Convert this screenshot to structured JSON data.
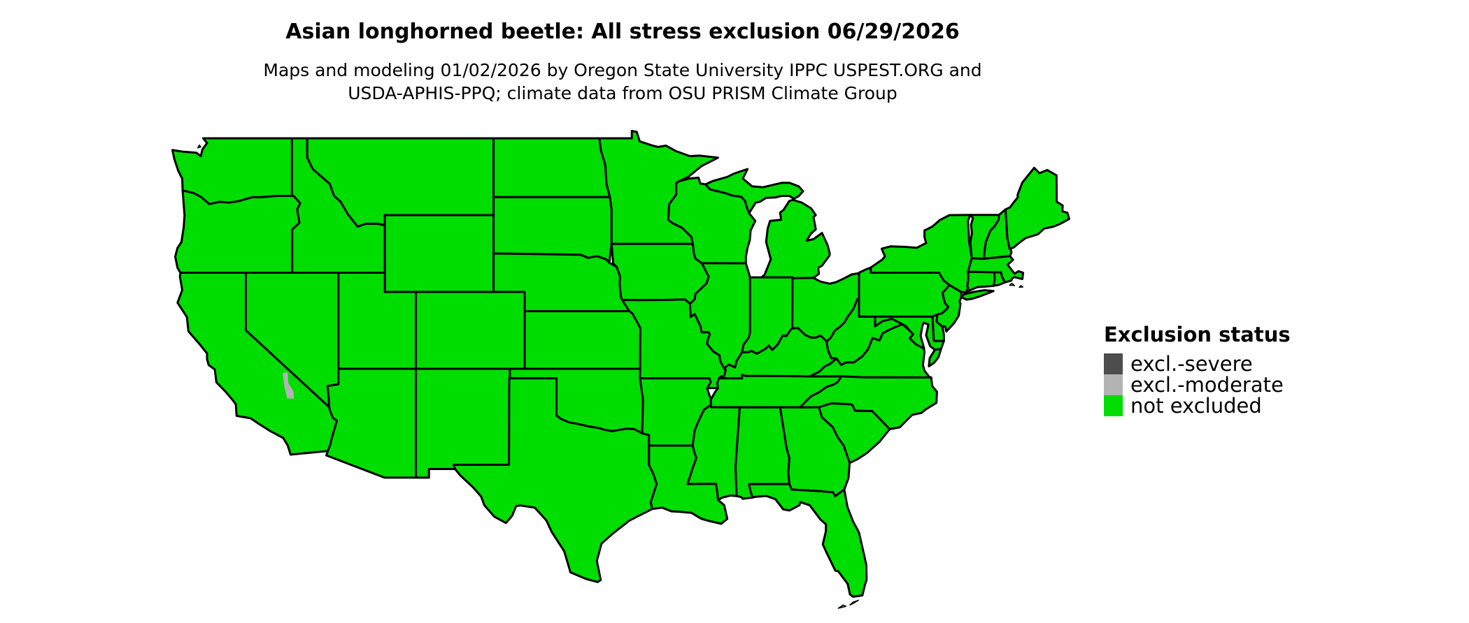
{
  "title": "Asian longhorned beetle: All stress exclusion 06/29/2026",
  "subtitle": {
    "line1": "Maps and modeling 01/02/2026 by Oregon State University IPPC USPEST.ORG and",
    "line2": "USDA-APHIS-PPQ; climate data from OSU PRISM Climate Group"
  },
  "legend": {
    "heading": "Exclusion status",
    "items": [
      {
        "label": "excl.-severe",
        "color": "#4d4d4d"
      },
      {
        "label": "excl.-moderate",
        "color": "#b3b3b3"
      },
      {
        "label": "not excluded",
        "color": "#00dd00"
      }
    ]
  },
  "map": {
    "background": "#ffffff",
    "land_fill": "#00dd00",
    "border_color": "#000000",
    "moderate_patch_color": "#b3b3b3"
  },
  "map_data": {
    "type": "choropleth",
    "region": "contiguous United States",
    "map_date": "06/29/2026",
    "model_date": "01/02/2026",
    "status_by_state": {
      "WA": "not excluded",
      "OR": "not excluded",
      "CA": "not excluded",
      "NV": "not excluded",
      "ID": "not excluded",
      "MT": "not excluded",
      "WY": "not excluded",
      "UT": "not excluded",
      "CO": "not excluded",
      "AZ": "not excluded",
      "NM": "not excluded",
      "ND": "not excluded",
      "SD": "not excluded",
      "NE": "not excluded",
      "KS": "not excluded",
      "OK": "not excluded",
      "TX": "not excluded",
      "MN": "not excluded",
      "IA": "not excluded",
      "MO": "not excluded",
      "AR": "not excluded",
      "LA": "not excluded",
      "WI": "not excluded",
      "IL": "not excluded",
      "MI": "not excluded",
      "IN": "not excluded",
      "OH": "not excluded",
      "KY": "not excluded",
      "TN": "not excluded",
      "MS": "not excluded",
      "AL": "not excluded",
      "GA": "not excluded",
      "FL": "not excluded",
      "SC": "not excluded",
      "NC": "not excluded",
      "VA": "not excluded",
      "WV": "not excluded",
      "MD": "not excluded",
      "DE": "not excluded",
      "PA": "not excluded",
      "NJ": "not excluded",
      "NY": "not excluded",
      "CT": "not excluded",
      "RI": "not excluded",
      "MA": "not excluded",
      "VT": "not excluded",
      "NH": "not excluded",
      "ME": "not excluded"
    },
    "exceptions": [
      {
        "area": "Sierra Nevada crest sliver (eastern California)",
        "status": "excl.-moderate"
      }
    ]
  }
}
